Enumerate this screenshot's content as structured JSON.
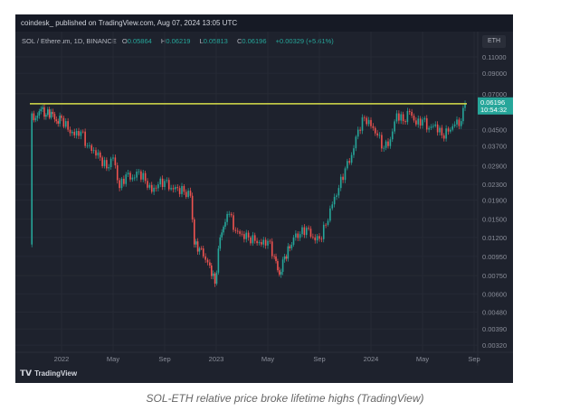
{
  "header": {
    "publisher": "coindesk_ published on TradingView.com, Aug 07, 2024 13:05 UTC"
  },
  "symbol": {
    "name": "SOL / Ethereum, 1D, BINANCE",
    "o_label": "O",
    "o": "0.05864",
    "h_label": "H",
    "h": "0.06219",
    "l_label": "L",
    "l": "0.05813",
    "c_label": "C",
    "c": "0.06196",
    "change": "+0.00329 (+5.61%)"
  },
  "currency": "ETH",
  "logo": "TradingView",
  "caption": "SOL-ETH relative price broke lifetime highs (TradingView)",
  "colors": {
    "up": "#26a69a",
    "down": "#ef5350",
    "line": "#d7e04a",
    "price_tag": "#26a69a"
  },
  "chart_data": {
    "type": "candlestick",
    "scale": "log",
    "ylim": [
      0.003,
      0.12
    ],
    "yticks": [
      "0.11000",
      "0.09000",
      "0.07000",
      "0.04500",
      "0.03700",
      "0.02900",
      "0.02300",
      "0.01900",
      "0.01500",
      "0.01200",
      "0.00950",
      "0.00750",
      "0.00600",
      "0.00480",
      "0.00390",
      "0.00320"
    ],
    "xticks": [
      {
        "label": "2022",
        "m": 0
      },
      {
        "label": "May",
        "m": 4
      },
      {
        "label": "Sep",
        "m": 8
      },
      {
        "label": "2023",
        "m": 12
      },
      {
        "label": "May",
        "m": 16
      },
      {
        "label": "Sep",
        "m": 20
      },
      {
        "label": "2024",
        "m": 24
      },
      {
        "label": "May",
        "m": 28
      },
      {
        "label": "Sep",
        "m": 32
      }
    ],
    "last_price": "0.06196",
    "countdown": "10:54:32",
    "resistance": 0.0619,
    "series_note": "months since Jan 2022, close",
    "points": [
      [
        -2.4,
        0.011
      ],
      [
        -2.3,
        0.055
      ],
      [
        -2.0,
        0.052
      ],
      [
        -1.6,
        0.058
      ],
      [
        -1.2,
        0.054
      ],
      [
        -0.8,
        0.056
      ],
      [
        -0.4,
        0.05
      ],
      [
        0,
        0.052
      ],
      [
        0.5,
        0.045
      ],
      [
        1,
        0.042
      ],
      [
        1.5,
        0.044
      ],
      [
        2,
        0.037
      ],
      [
        2.5,
        0.035
      ],
      [
        3,
        0.032
      ],
      [
        3.5,
        0.028
      ],
      [
        4,
        0.032
      ],
      [
        4.5,
        0.022
      ],
      [
        5,
        0.026
      ],
      [
        5.5,
        0.025
      ],
      [
        6,
        0.027
      ],
      [
        6.5,
        0.024
      ],
      [
        7,
        0.021
      ],
      [
        7.5,
        0.023
      ],
      [
        8,
        0.024
      ],
      [
        8.5,
        0.022
      ],
      [
        9,
        0.022
      ],
      [
        9.5,
        0.021
      ],
      [
        10,
        0.02
      ],
      [
        10.3,
        0.011
      ],
      [
        10.7,
        0.0105
      ],
      [
        11,
        0.0095
      ],
      [
        11.5,
        0.0085
      ],
      [
        11.9,
        0.0068
      ],
      [
        12.3,
        0.012
      ],
      [
        12.7,
        0.0145
      ],
      [
        13,
        0.016
      ],
      [
        13.5,
        0.013
      ],
      [
        14,
        0.0125
      ],
      [
        14.5,
        0.012
      ],
      [
        15,
        0.0115
      ],
      [
        15.5,
        0.011
      ],
      [
        16,
        0.0115
      ],
      [
        16.5,
        0.0095
      ],
      [
        16.9,
        0.0076
      ],
      [
        17.3,
        0.0095
      ],
      [
        17.7,
        0.0105
      ],
      [
        18,
        0.012
      ],
      [
        18.5,
        0.0125
      ],
      [
        19,
        0.0135
      ],
      [
        19.5,
        0.012
      ],
      [
        20,
        0.0118
      ],
      [
        20.5,
        0.014
      ],
      [
        21,
        0.018
      ],
      [
        21.5,
        0.022
      ],
      [
        22,
        0.028
      ],
      [
        22.5,
        0.033
      ],
      [
        23,
        0.045
      ],
      [
        23.5,
        0.052
      ],
      [
        24,
        0.047
      ],
      [
        24.5,
        0.042
      ],
      [
        25,
        0.036
      ],
      [
        25.5,
        0.04
      ],
      [
        26,
        0.055
      ],
      [
        26.5,
        0.05
      ],
      [
        27,
        0.056
      ],
      [
        27.5,
        0.048
      ],
      [
        28,
        0.051
      ],
      [
        28.5,
        0.046
      ],
      [
        29,
        0.048
      ],
      [
        29.5,
        0.042
      ],
      [
        30,
        0.044
      ],
      [
        30.5,
        0.048
      ],
      [
        31,
        0.05
      ],
      [
        31.3,
        0.062
      ]
    ]
  }
}
